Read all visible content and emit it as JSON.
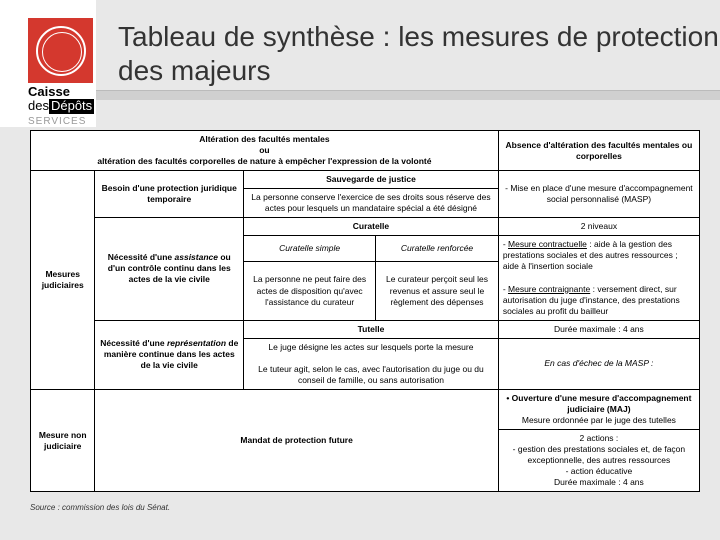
{
  "title": "Tableau  de synthèse : les mesures de protection des majeurs",
  "brand": {
    "l1": "Caisse",
    "l2": "des",
    "l3": "Dépôts",
    "svc": "SERVICES"
  },
  "source": "Source : commission des lois du Sénat.",
  "t": {
    "hdr_alt": "Altération des facultés mentales\nou\naltération des facultés corporelles de nature à empêcher l'expression de la volonté",
    "hdr_abs": "Absence d'altération des facultés mentales ou corporelles",
    "mj": "Mesures judiciaires",
    "besoin": "Besoin d'une protection juridique temporaire",
    "sauve_t": "Sauvegarde de justice",
    "sauve_b": "La personne conserve l'exercice de ses droits sous réserve des actes pour lesquels un mandataire spécial a été désigné",
    "masp": "- Mise en place d'une mesure d'accompagnement social personnalisé (MASP)",
    "niv": "2 niveaux",
    "nec": "Nécessité d'une assistance ou d'un contrôle continu dans les actes de la vie civile",
    "cur_t": "Curatelle",
    "cur_s": "Curatelle simple",
    "cur_r": "Curatelle renforcée",
    "cur_sb": "La personne ne peut faire des actes de disposition qu'avec l'assistance du curateur",
    "cur_rb": "Le curateur perçoit seul les revenus et assure seul le règlement des dépenses",
    "contract": "- Mesure contractuelle : aide à la gestion des prestations sociales et des autres ressources ; aide à l'insertion sociale",
    "contraig": "- Mesure contraignante : versement direct, sur autorisation du juge d'instance, des prestations sociales au profit du bailleur",
    "rep": "Nécessité d'une représentation de manière continue dans les actes de la vie civile",
    "tut_t": "Tutelle",
    "tut_b1": "Le juge désigne les actes sur lesquels porte la mesure",
    "tut_b2": "Le tuteur agit, selon le cas, avec l'autorisation du juge ou du conseil de famille, ou sans autorisation",
    "duree": "Durée maximale : 4 ans",
    "echec": "En cas d'échec de la MASP :",
    "mnj": "Mesure non judiciaire",
    "mandat": "Mandat de protection future",
    "maj": "• Ouverture d'une mesure d'accompagnement judiciaire (MAJ)",
    "maj_ord": "Mesure ordonnée par le juge des tutelles",
    "actions": "2 actions :\n- gestion des prestations sociales et, de façon exceptionnelle, des autres ressources\n- action éducative\nDurée maximale : 4 ans"
  },
  "colors": {
    "accent": "#d4382e",
    "band": "#d0d0d0"
  }
}
